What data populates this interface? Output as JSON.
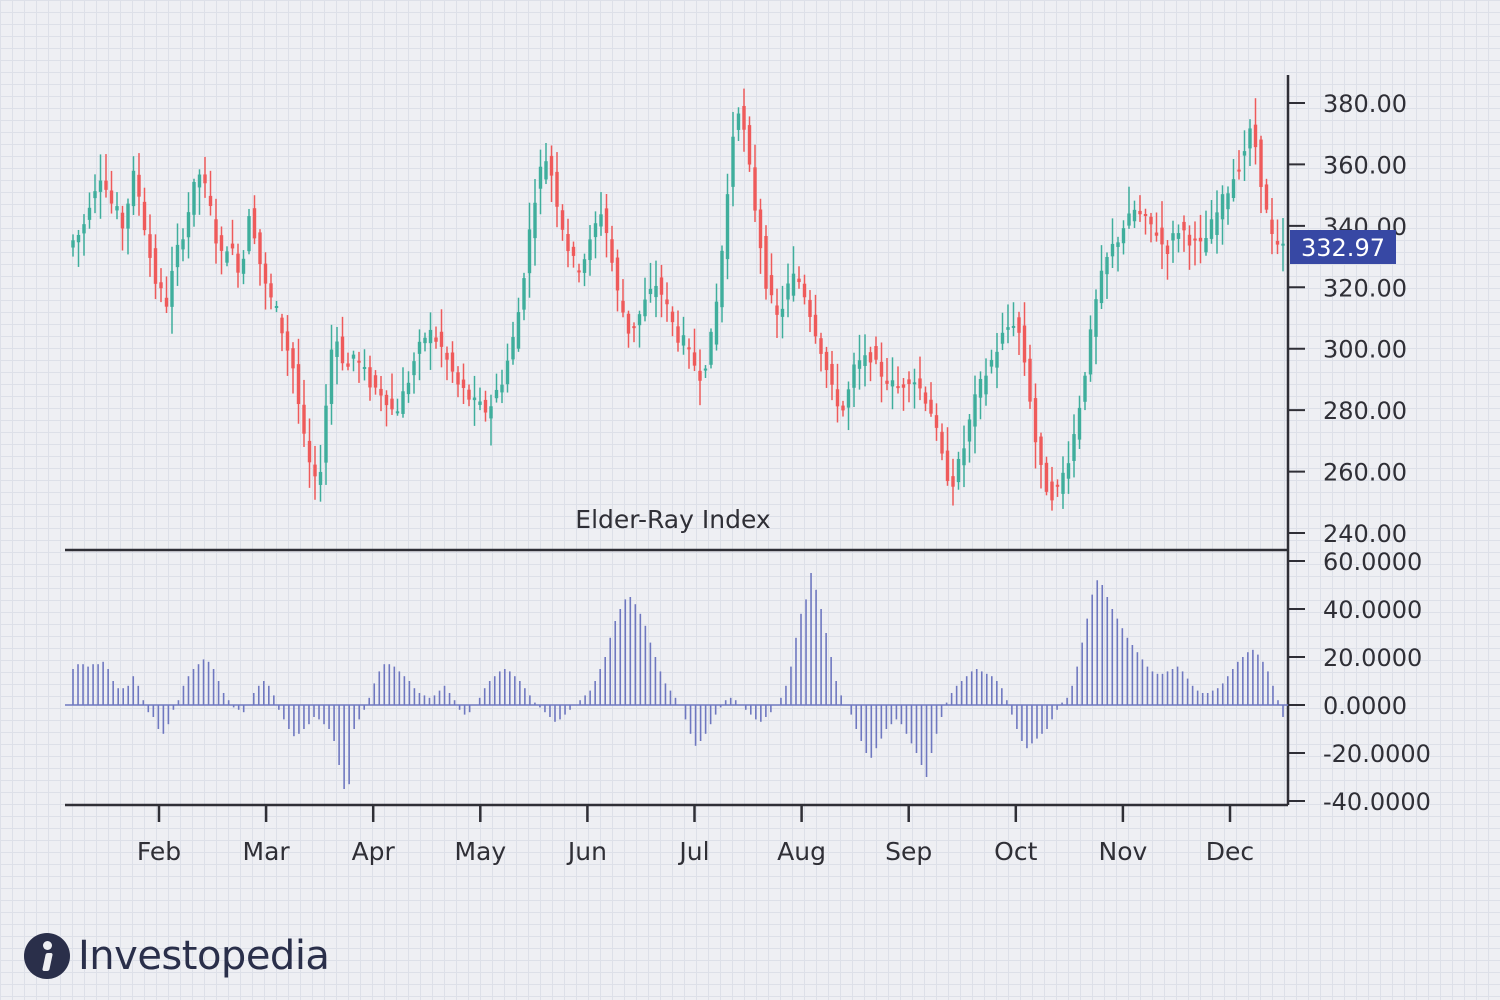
{
  "chart_data": {
    "type": "candlestick",
    "title": "Elder-Ray Index",
    "price_axis": {
      "ticks": [
        "380.00",
        "360.00",
        "340.00",
        "320.00",
        "300.00",
        "280.00",
        "260.00",
        "240.00"
      ],
      "range": [
        240,
        385
      ]
    },
    "indicator_axis": {
      "ticks": [
        "60.0000",
        "40.0000",
        "20.0000",
        "0.0000",
        "-20.0000",
        "-40.0000"
      ],
      "range": [
        -40,
        60
      ]
    },
    "months": [
      "Feb",
      "Mar",
      "Apr",
      "May",
      "Jun",
      "Jul",
      "Aug",
      "Sep",
      "Oct",
      "Nov",
      "Dec"
    ],
    "last_price": "332.97",
    "trend_closes": [
      335,
      337,
      341,
      348,
      353,
      357,
      352,
      347,
      344,
      340,
      348,
      356,
      350,
      340,
      330,
      322,
      318,
      315,
      324,
      332,
      338,
      345,
      352,
      357,
      352,
      345,
      336,
      330,
      334,
      331,
      327,
      330,
      345,
      338,
      328,
      320,
      316,
      312,
      306,
      300,
      294,
      282,
      270,
      262,
      256,
      262,
      282,
      300,
      303,
      297,
      294,
      298,
      295,
      292,
      289,
      287,
      286,
      284,
      280,
      281,
      285,
      290,
      296,
      300,
      304,
      305,
      303,
      300,
      296,
      292,
      288,
      286,
      284,
      282,
      281,
      280,
      282,
      286,
      290,
      296,
      303,
      312,
      325,
      338,
      350,
      358,
      362,
      357,
      348,
      340,
      333,
      328,
      327,
      330,
      334,
      340,
      345,
      338,
      328,
      318,
      312,
      306,
      308,
      311,
      315,
      318,
      321,
      318,
      313,
      308,
      304,
      302,
      298,
      295,
      292,
      296,
      303,
      315,
      332,
      350,
      370,
      379,
      370,
      358,
      346,
      334,
      322,
      315,
      310,
      314,
      320,
      323,
      322,
      318,
      312,
      306,
      300,
      293,
      286,
      283,
      280,
      286,
      293,
      295,
      296,
      298,
      294,
      292,
      290,
      288,
      287,
      289,
      291,
      290,
      287,
      284,
      280,
      272,
      264,
      259,
      257,
      262,
      268,
      276,
      283,
      288,
      292,
      296,
      300,
      304,
      307,
      309,
      305,
      296,
      284,
      270,
      260,
      255,
      253,
      254,
      259,
      265,
      272,
      282,
      293,
      304,
      315,
      323,
      329,
      333,
      336,
      340,
      342,
      345,
      343,
      341,
      340,
      338,
      334,
      333,
      336,
      339,
      338,
      336,
      334,
      333,
      336,
      340,
      344,
      348,
      352,
      356,
      360,
      365,
      370,
      366,
      355,
      344,
      336,
      332,
      333
    ],
    "osc_values": [
      15,
      17,
      17,
      16,
      17,
      17,
      18,
      15,
      10,
      7,
      7,
      8,
      12,
      8,
      2,
      -3,
      -5,
      -10,
      -12,
      -8,
      -2,
      2,
      8,
      12,
      15,
      17,
      19,
      18,
      15,
      10,
      5,
      2,
      -1,
      -2,
      -3,
      0,
      5,
      8,
      10,
      8,
      4,
      -2,
      -6,
      -10,
      -13,
      -12,
      -10,
      -8,
      -5,
      -6,
      -8,
      -10,
      -15,
      -25,
      -35,
      -33,
      -10,
      -6,
      -2,
      3,
      9,
      14,
      17,
      17,
      16,
      14,
      12,
      10,
      7,
      5,
      4,
      3,
      4,
      6,
      8,
      5,
      2,
      -2,
      -4,
      -3,
      0,
      3,
      7,
      10,
      12,
      14,
      15,
      14,
      12,
      10,
      7,
      4,
      1,
      -1,
      -3,
      -5,
      -7,
      -6,
      -4,
      -2,
      0,
      2,
      4,
      6,
      10,
      15,
      20,
      28,
      35,
      40,
      44,
      45,
      42,
      38,
      33,
      26,
      20,
      14,
      9,
      6,
      3,
      0,
      -6,
      -12,
      -17,
      -15,
      -12,
      -8,
      -4,
      -1,
      2,
      3,
      2,
      0,
      -2,
      -4,
      -6,
      -7,
      -5,
      -3,
      0,
      3,
      8,
      16,
      28,
      38,
      44,
      55,
      48,
      40,
      30,
      20,
      10,
      4,
      0,
      -4,
      -10,
      -15,
      -20,
      -22,
      -18,
      -14,
      -10,
      -8,
      -6,
      -8,
      -12,
      -16,
      -20,
      -25,
      -30,
      -20,
      -12,
      -5,
      1,
      5,
      8,
      10,
      12,
      14,
      15,
      14,
      13,
      12,
      10,
      7,
      2,
      -4,
      -10,
      -15,
      -18,
      -16,
      -14,
      -12,
      -10,
      -6,
      -2,
      1,
      3,
      8,
      16,
      26,
      36,
      46,
      52,
      50,
      45,
      40,
      36,
      32,
      28,
      25,
      22,
      19,
      16,
      14,
      13,
      13,
      14,
      15,
      16,
      14,
      11,
      8,
      6,
      5,
      5,
      6,
      7,
      9,
      12,
      15,
      18,
      20,
      22,
      23,
      21,
      18,
      14,
      8,
      2,
      -5
    ]
  },
  "brand": {
    "name": "Investopedia"
  },
  "colors": {
    "bull": "#3fae9c",
    "bear": "#ef5a5a",
    "histogram": "#6f78c0",
    "axis": "#2f2f36",
    "badge": "#3748a4"
  }
}
